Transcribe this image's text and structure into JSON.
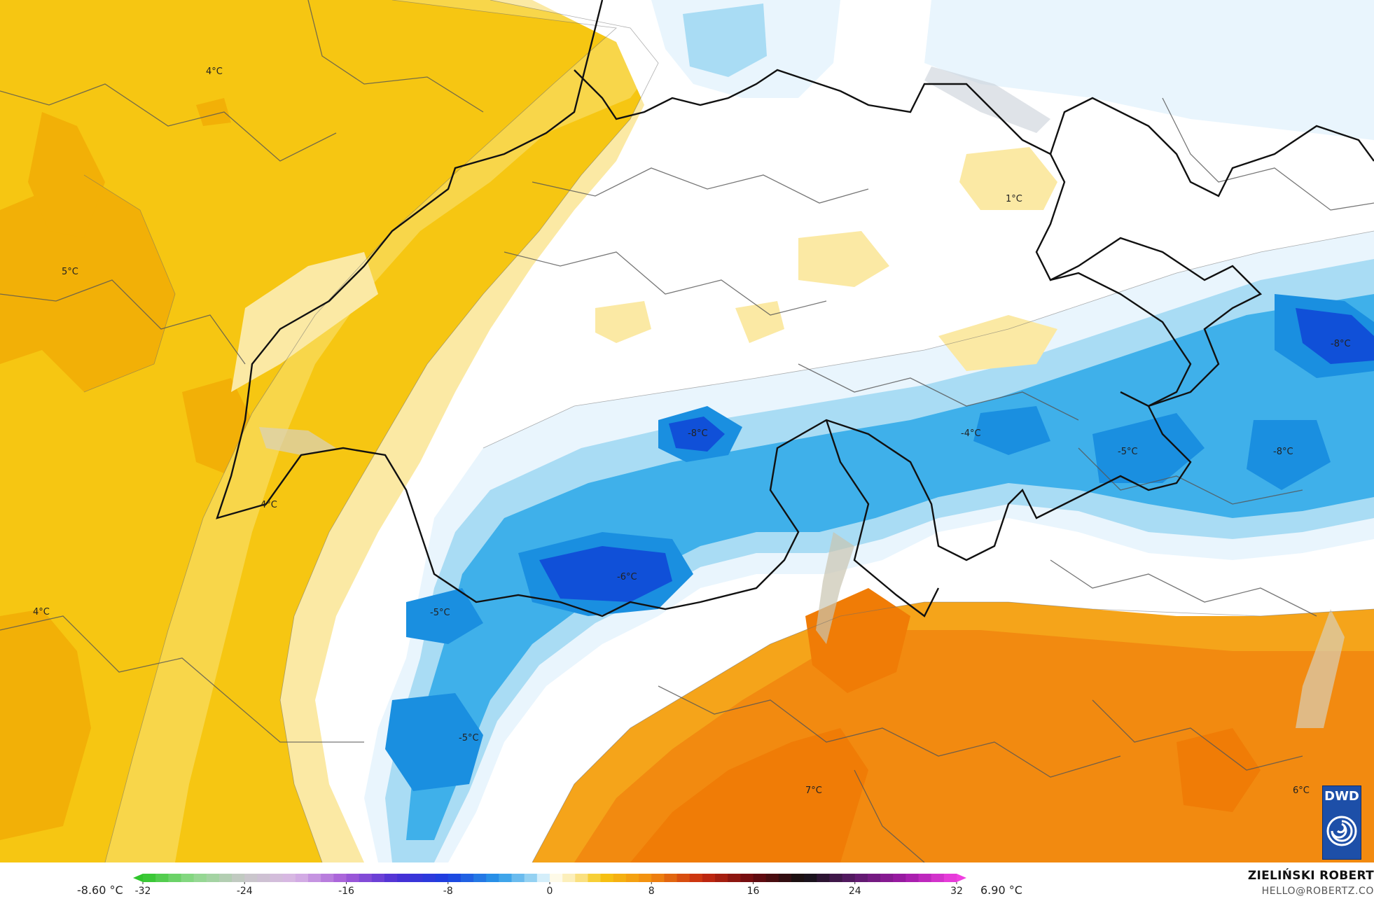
{
  "legend": {
    "min_value": "-8.60 °C",
    "max_value": "6.90 °C",
    "ticks": [
      "-32",
      "-24",
      "-16",
      "-8",
      "0",
      "8",
      "16",
      "24",
      "32"
    ]
  },
  "credits": {
    "author": "ZIELIŃSKI ROBERT",
    "email": "HELLO@ROBERTZ.CO",
    "logo": "DWD"
  },
  "map_labels": [
    {
      "id": "france-north",
      "text": "4°C"
    },
    {
      "id": "france-mid",
      "text": "5°C"
    },
    {
      "id": "france-south",
      "text": "4°C"
    },
    {
      "id": "geneva",
      "text": "4°C"
    },
    {
      "id": "bodensee",
      "text": "1°C"
    },
    {
      "id": "austria-east",
      "text": "-8°C"
    },
    {
      "id": "central-alps",
      "text": "-8°C"
    },
    {
      "id": "gotthard",
      "text": "-4°C"
    },
    {
      "id": "graubuenden",
      "text": "-5°C"
    },
    {
      "id": "tirol",
      "text": "-8°C"
    },
    {
      "id": "valais",
      "text": "-6°C"
    },
    {
      "id": "mont-blanc",
      "text": "-5°C"
    },
    {
      "id": "savoie",
      "text": "-5°C"
    },
    {
      "id": "po-valley",
      "text": "7°C"
    },
    {
      "id": "veneto",
      "text": "6°C"
    }
  ],
  "colors": {
    "warm_yellow": "#f6c612",
    "light_yellow": "#f8d64a",
    "pale_yellow": "#fbe9a4",
    "white": "#ffffff",
    "ice": "#e9f5fd",
    "light_blue": "#a9dcf4",
    "blue": "#3fb0ea",
    "mid_blue": "#1a8fe0",
    "deep_blue": "#1050d8",
    "orange": "#f28a10",
    "dark_orange": "#f07c06",
    "amber": "#f5a41a"
  }
}
